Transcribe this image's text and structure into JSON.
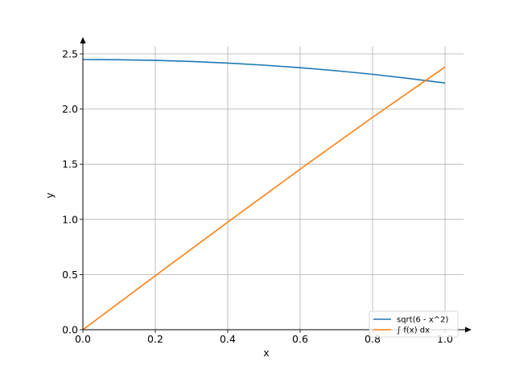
{
  "chart_data": {
    "type": "line",
    "xlabel": "x",
    "ylabel": "y",
    "xlim": [
      0.0,
      1.0
    ],
    "ylim": [
      0.0,
      2.5
    ],
    "xticks": [
      "0.0",
      "0.2",
      "0.4",
      "0.6",
      "0.8",
      "1.0"
    ],
    "yticks": [
      "0.0",
      "0.5",
      "1.0",
      "1.5",
      "2.0",
      "2.5"
    ],
    "grid": true,
    "legend_position": "bottom-right",
    "series": [
      {
        "name": "sqrt(6 - x^2)",
        "color": "#1f77b4",
        "x": [
          0.0,
          0.1,
          0.2,
          0.3,
          0.4,
          0.5,
          0.6,
          0.7,
          0.8,
          0.9,
          1.0
        ],
        "y": [
          2.449,
          2.447,
          2.441,
          2.431,
          2.417,
          2.398,
          2.375,
          2.347,
          2.315,
          2.277,
          2.236
        ]
      },
      {
        "name": "∫ f(x) dx",
        "color": "#ff7f0e",
        "x": [
          0.0,
          0.2,
          0.4,
          0.6,
          0.8,
          1.0
        ],
        "y": [
          0.0,
          0.489,
          0.975,
          1.455,
          1.925,
          2.381
        ]
      }
    ]
  }
}
